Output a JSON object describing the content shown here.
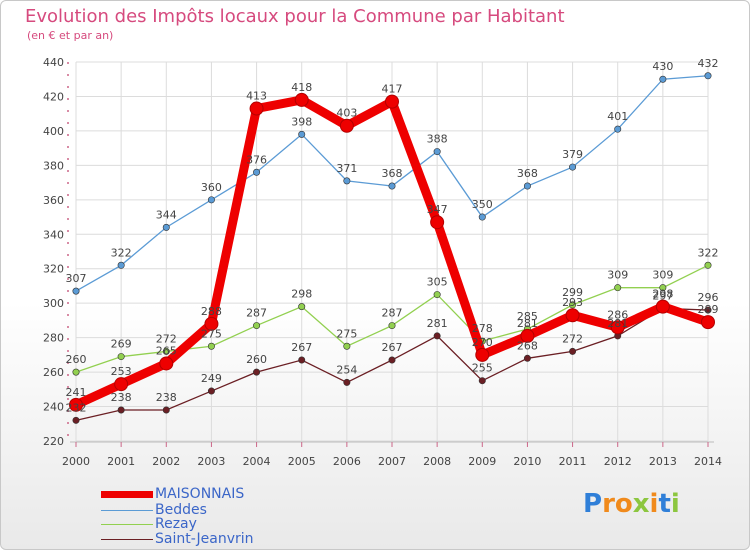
{
  "header": {
    "title": "Evolution des Impôts locaux pour la Commune par Habitant",
    "subtitle": "(en € et par an)"
  },
  "colors": {
    "title": "#d64a7e",
    "legend_text": "#3b66c8",
    "grid": "#dcdcdc",
    "maisonnais": "#ee0000",
    "beddes": "#5b9bd5",
    "rezay": "#92d050",
    "saint_jeanvrin": "#6b1f24"
  },
  "logo": {
    "text": "Proxiti",
    "letters": [
      "P",
      "r",
      "o",
      "x",
      "i",
      "t",
      "i"
    ],
    "colors": [
      "#2f7fd8",
      "#f08a1c",
      "#f08a1c",
      "#8cc63f",
      "#f08a1c",
      "#2f7fd8",
      "#8cc63f"
    ]
  },
  "chart_data": {
    "type": "line",
    "title": "Evolution des Impôts locaux pour la Commune par Habitant",
    "subtitle": "(en € et par an)",
    "xlabel": "",
    "ylabel": "",
    "categories": [
      "2000",
      "2001",
      "2002",
      "2003",
      "2004",
      "2005",
      "2006",
      "2007",
      "2008",
      "2009",
      "2010",
      "2011",
      "2012",
      "2013",
      "2014"
    ],
    "ylim": [
      220,
      440
    ],
    "yticks": [
      220,
      240,
      260,
      280,
      300,
      320,
      340,
      360,
      380,
      400,
      420,
      440
    ],
    "grid": true,
    "legend_position": "bottom-left",
    "series": [
      {
        "name": "MAISONNAIS",
        "color": "#ee0000",
        "emphasis": true,
        "values": [
          241,
          253,
          265,
          288,
          413,
          418,
          403,
          417,
          347,
          270,
          281,
          293,
          286,
          298,
          289
        ],
        "labels": [
          "241",
          "253",
          "265",
          "288",
          "413",
          "418",
          "403",
          "417",
          "347",
          "270",
          "281",
          "293",
          "286",
          "298",
          "289"
        ]
      },
      {
        "name": "Beddes",
        "color": "#5b9bd5",
        "emphasis": false,
        "values": [
          307,
          322,
          344,
          360,
          376,
          398,
          371,
          368,
          388,
          350,
          368,
          379,
          401,
          430,
          432
        ],
        "labels": [
          "307",
          "322",
          "344",
          "360",
          "376",
          "398",
          "371",
          "368",
          "388",
          "350",
          "368",
          "379",
          "401",
          "430",
          "432"
        ]
      },
      {
        "name": "Rezay",
        "color": "#92d050",
        "emphasis": false,
        "values": [
          260,
          269,
          272,
          275,
          287,
          298,
          275,
          287,
          305,
          278,
          285,
          299,
          309,
          309,
          322
        ],
        "labels": [
          "260",
          "269",
          "272",
          "275",
          "287",
          "298",
          "275",
          "287",
          "305",
          "278",
          "285",
          "299",
          "309",
          "309",
          "322"
        ]
      },
      {
        "name": "Saint-Jeanvrin",
        "color": "#6b1f24",
        "emphasis": false,
        "values": [
          232,
          238,
          238,
          249,
          260,
          267,
          254,
          267,
          281,
          255,
          268,
          272,
          281,
          297,
          296
        ],
        "labels": [
          "232",
          "238",
          "238",
          "249",
          "260",
          "267",
          "254",
          "267",
          "281",
          "255",
          "268",
          "272",
          "281",
          "297",
          "296"
        ]
      }
    ]
  }
}
